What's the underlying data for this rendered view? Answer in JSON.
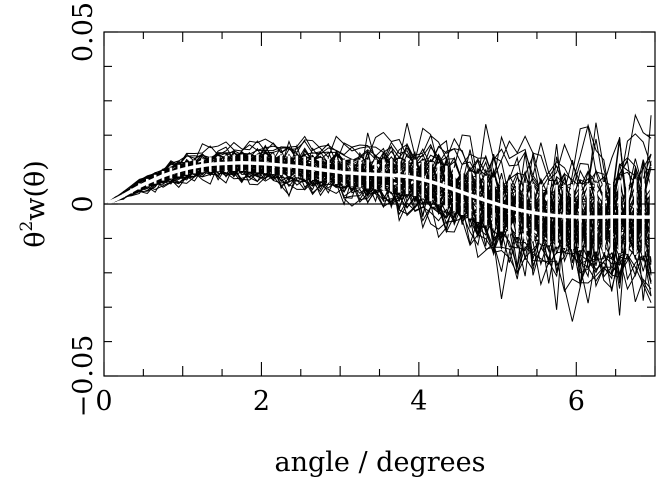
{
  "chart_data": {
    "type": "line",
    "xlabel": "angle / degrees",
    "ylabel_symbol": "θ",
    "ylabel_sup": "2",
    "ylabel_rest": "w(θ)",
    "xlim": [
      0,
      7
    ],
    "ylim": [
      -0.05,
      0.05
    ],
    "x_ticks": [
      0,
      2,
      4,
      6
    ],
    "x_tick_labels": [
      "0",
      "2",
      "4",
      "6"
    ],
    "y_ticks": [
      -0.05,
      0,
      0.05
    ],
    "y_tick_labels": [
      "−0.05",
      "0",
      "0.05"
    ],
    "x_minor_step": 0.5,
    "y_minor_step": 0.01,
    "grid": false,
    "zero_line": true,
    "mock_realisations": 60,
    "x": [
      0.05,
      0.15,
      0.25,
      0.35,
      0.45,
      0.55,
      0.65,
      0.75,
      0.85,
      0.95,
      1.05,
      1.15,
      1.25,
      1.35,
      1.45,
      1.55,
      1.65,
      1.75,
      1.85,
      1.95,
      2.05,
      2.15,
      2.25,
      2.35,
      2.45,
      2.55,
      2.65,
      2.75,
      2.85,
      2.95,
      3.05,
      3.15,
      3.25,
      3.35,
      3.45,
      3.55,
      3.65,
      3.75,
      3.85,
      3.95,
      4.05,
      4.15,
      4.25,
      4.35,
      4.45,
      4.55,
      4.65,
      4.75,
      4.85,
      4.95,
      5.05,
      5.15,
      5.25,
      5.35,
      5.45,
      5.55,
      5.65,
      5.75,
      5.85,
      5.95,
      6.05,
      6.15,
      6.25,
      6.35,
      6.45,
      6.55,
      6.65,
      6.75,
      6.85,
      6.95
    ],
    "mean": [
      0.0003,
      0.0013,
      0.0025,
      0.0038,
      0.0051,
      0.0062,
      0.0072,
      0.0082,
      0.009,
      0.0097,
      0.0103,
      0.0108,
      0.0112,
      0.0115,
      0.0117,
      0.0118,
      0.0119,
      0.012,
      0.0119,
      0.0118,
      0.0117,
      0.0115,
      0.0113,
      0.0111,
      0.0109,
      0.0106,
      0.0103,
      0.01,
      0.0097,
      0.0094,
      0.0091,
      0.009,
      0.0088,
      0.0087,
      0.0086,
      0.0085,
      0.0084,
      0.0082,
      0.008,
      0.0076,
      0.0071,
      0.0065,
      0.0058,
      0.005,
      0.0042,
      0.0034,
      0.0026,
      0.0018,
      0.001,
      0.0003,
      -0.0004,
      -0.001,
      -0.0016,
      -0.0021,
      -0.0025,
      -0.0029,
      -0.0032,
      -0.0034,
      -0.0036,
      -0.0037,
      -0.0038,
      -0.0038,
      -0.0038,
      -0.0038,
      -0.0037,
      -0.0037,
      -0.0037,
      -0.0038,
      -0.0038,
      -0.0038
    ],
    "sigma": [
      0.0001,
      0.0003,
      0.0005,
      0.0007,
      0.0009,
      0.0011,
      0.0013,
      0.0014,
      0.0016,
      0.0017,
      0.0018,
      0.0019,
      0.002,
      0.0021,
      0.0022,
      0.0023,
      0.0023,
      0.0024,
      0.0025,
      0.0026,
      0.0027,
      0.0028,
      0.0029,
      0.003,
      0.0031,
      0.0032,
      0.0033,
      0.0034,
      0.0035,
      0.0036,
      0.0038,
      0.0039,
      0.004,
      0.0042,
      0.0043,
      0.0045,
      0.0047,
      0.0049,
      0.0051,
      0.0053,
      0.0055,
      0.0057,
      0.0059,
      0.0061,
      0.0063,
      0.0066,
      0.0068,
      0.007,
      0.0072,
      0.0074,
      0.0076,
      0.0078,
      0.008,
      0.0082,
      0.0084,
      0.0086,
      0.0088,
      0.009,
      0.0092,
      0.0094,
      0.0096,
      0.0098,
      0.01,
      0.0102,
      0.0104,
      0.0106,
      0.0108,
      0.011,
      0.0112,
      0.0114
    ]
  }
}
